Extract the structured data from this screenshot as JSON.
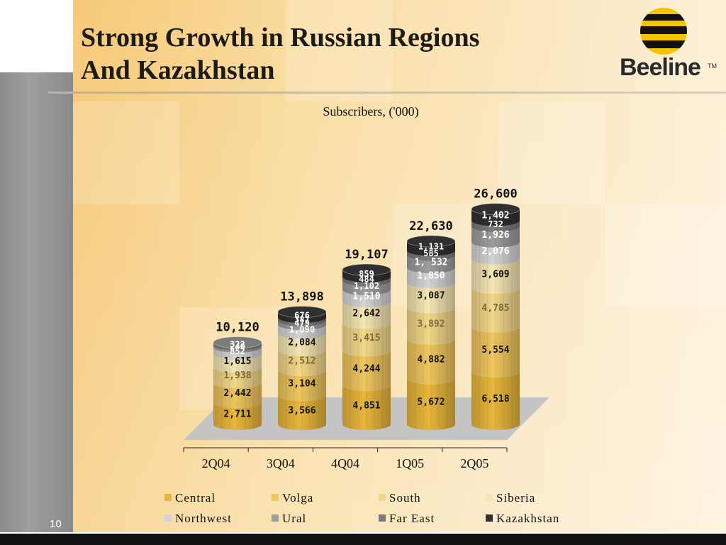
{
  "slide": {
    "title_line1": "Strong Growth in Russian Regions",
    "title_line2": "And Kazakhstan",
    "logo_text": "Beeline",
    "logo_tm": "TM",
    "page_number": "10"
  },
  "colors": {
    "Central": "#e8b63c",
    "Volga": "#efc55e",
    "South": "#f2d788",
    "Siberia": "#f6e6b4",
    "Northwest": "#d4d4d4",
    "Ural": "#9d9d9d",
    "Far East": "#7b7b7b",
    "Kazakhstan": "#303030",
    "floor": "#c4c4c4",
    "accent_dark": "#1e1b16"
  },
  "chart_data": {
    "type": "bar",
    "stacked": true,
    "title": "Subscribers, ('000)",
    "categories": [
      "2Q04",
      "3Q04",
      "4Q04",
      "1Q05",
      "2Q05"
    ],
    "totals": [
      "10,120",
      "13,898",
      "19,107",
      "22,630",
      "26,600"
    ],
    "series": [
      {
        "name": "Central",
        "values": [
          2711,
          3566,
          4851,
          5672,
          6518
        ],
        "labels": [
          "2,711",
          "3,566",
          "4,851",
          "5,672",
          "6,518"
        ]
      },
      {
        "name": "Volga",
        "values": [
          2442,
          3104,
          4244,
          4882,
          5554
        ],
        "labels": [
          "2,442",
          "3,104",
          "4,244",
          "4,882",
          "5,554"
        ]
      },
      {
        "name": "South",
        "values": [
          1938,
          2512,
          3415,
          3892,
          4785
        ],
        "labels": [
          "1,938",
          "2,512",
          "3,415",
          "3,892",
          "4,785"
        ]
      },
      {
        "name": "Siberia",
        "values": [
          1615,
          2084,
          2642,
          3087,
          3609
        ],
        "labels": [
          "1,615",
          "2,084",
          "2,642",
          "3,087",
          "3,609"
        ]
      },
      {
        "name": "Northwest",
        "values": [
          852,
          1090,
          1510,
          1850,
          2076
        ],
        "labels": [
          "852",
          "1,090",
          "1,510",
          "1,850",
          "2,076"
        ]
      },
      {
        "name": "Ural",
        "values": [
          240,
          479,
          1102,
          1532,
          1926
        ],
        "labels": [
          "240",
          "479",
          "1,102",
          "1, 532",
          "1,926"
        ]
      },
      {
        "name": "Far East",
        "values": [
          322,
          387,
          484,
          585,
          732
        ],
        "labels": [
          "322",
          "387",
          "484",
          "585",
          "732"
        ]
      },
      {
        "name": "Kazakhstan",
        "values": [
          0,
          676,
          859,
          1131,
          1402
        ],
        "labels": [
          "",
          "676",
          "859",
          "1,131",
          "1,402"
        ]
      }
    ],
    "ylim": [
      0,
      28000
    ],
    "legend_position": "bottom",
    "grid": false
  }
}
